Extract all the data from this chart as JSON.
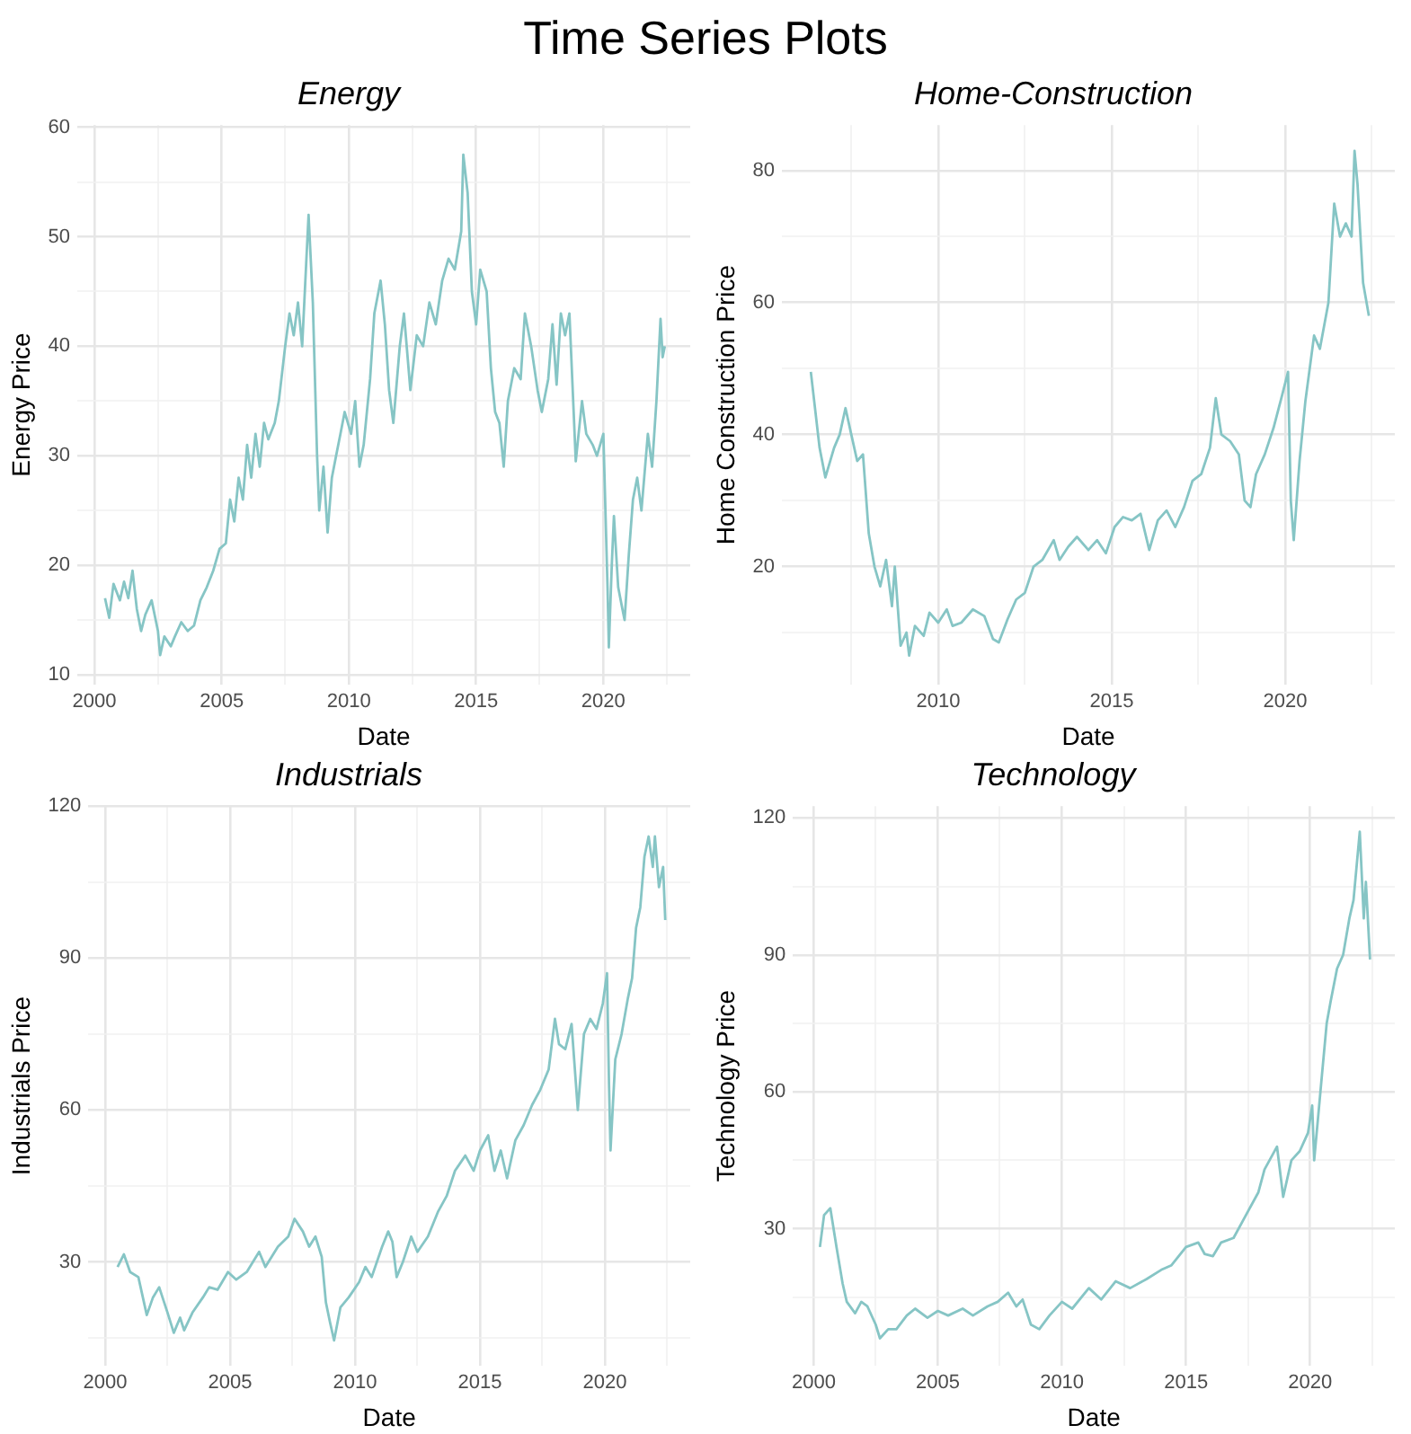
{
  "chart_data": [
    {
      "type": "line",
      "title": "Energy",
      "annotations": [
        "Time Series Plots"
      ],
      "xlabel": "Date",
      "ylabel": "Energy Price",
      "color": "#86c5c5",
      "marker": "none",
      "grid": true,
      "xlim": [
        "1999-05",
        "2023-06"
      ],
      "xticks": [
        "2000",
        {
          "value": "2002-07",
          "label": null
        },
        "2005",
        {
          "value": "2007-07",
          "label": null
        },
        "2010",
        {
          "value": "2012-07",
          "label": null
        },
        "2015",
        {
          "value": "2017-07",
          "label": null
        },
        "2020",
        {
          "value": "2022-07",
          "label": null
        }
      ],
      "ylim": [
        9.1,
        60.2
      ],
      "yticks": [
        10,
        {
          "value": 15,
          "label": null
        },
        20,
        {
          "value": 25,
          "label": null
        },
        30,
        {
          "value": 35,
          "label": null
        },
        40,
        {
          "value": 45,
          "label": null
        },
        50,
        {
          "value": 55,
          "label": null
        },
        60
      ],
      "x": [
        "2000-06",
        "2000-08",
        "2000-10",
        "2001-01",
        "2001-03",
        "2001-05",
        "2001-07",
        "2001-09",
        "2001-11",
        "2002-01",
        "2002-04",
        "2002-07",
        "2002-08",
        "2002-10",
        "2003-01",
        "2003-03",
        "2003-06",
        "2003-09",
        "2003-12",
        "2004-03",
        "2004-06",
        "2004-09",
        "2004-12",
        "2005-03",
        "2005-05",
        "2005-07",
        "2005-09",
        "2005-11",
        "2006-01",
        "2006-03",
        "2006-05",
        "2006-07",
        "2006-09",
        "2006-11",
        "2007-02",
        "2007-04",
        "2007-07",
        "2007-09",
        "2007-11",
        "2008-01",
        "2008-03",
        "2008-05",
        "2008-06",
        "2008-08",
        "2008-10",
        "2008-11",
        "2009-01",
        "2009-03",
        "2009-05",
        "2009-07",
        "2009-09",
        "2009-11",
        "2010-02",
        "2010-04",
        "2010-06",
        "2010-08",
        "2010-11",
        "2011-01",
        "2011-04",
        "2011-06",
        "2011-08",
        "2011-10",
        "2012-01",
        "2012-03",
        "2012-06",
        "2012-09",
        "2012-12",
        "2013-03",
        "2013-06",
        "2013-09",
        "2013-12",
        "2014-03",
        "2014-06",
        "2014-07",
        "2014-09",
        "2014-11",
        "2015-01",
        "2015-03",
        "2015-06",
        "2015-08",
        "2015-10",
        "2015-12",
        "2016-02",
        "2016-04",
        "2016-07",
        "2016-10",
        "2016-12",
        "2017-03",
        "2017-06",
        "2017-08",
        "2017-11",
        "2018-01",
        "2018-03",
        "2018-05",
        "2018-07",
        "2018-09",
        "2018-11",
        "2018-12",
        "2019-03",
        "2019-05",
        "2019-08",
        "2019-10",
        "2020-01",
        "2020-03",
        "2020-03-20",
        "2020-05",
        "2020-06",
        "2020-08",
        "2020-10",
        "2020-11",
        "2021-01",
        "2021-03",
        "2021-05",
        "2021-07",
        "2021-10",
        "2021-12",
        "2022-02",
        "2022-04",
        "2022-05",
        "2022-06"
      ],
      "values": [
        17,
        15.2,
        18.3,
        16.8,
        18.5,
        17,
        19.5,
        16,
        14,
        15.5,
        16.8,
        14,
        11.8,
        13.5,
        12.6,
        13.5,
        14.8,
        14,
        14.5,
        16.8,
        18,
        19.5,
        21.5,
        22,
        26,
        24,
        28,
        26,
        31,
        28,
        32,
        29,
        33,
        31.5,
        33,
        35,
        40,
        43,
        41,
        44,
        40,
        48,
        52,
        44,
        30,
        25,
        29,
        23,
        28,
        30,
        32,
        34,
        32,
        35,
        29,
        31,
        37,
        43,
        46,
        42,
        36,
        33,
        40,
        43,
        36,
        41,
        40,
        44,
        42,
        46,
        48,
        47,
        50.5,
        57.5,
        54,
        45,
        42,
        47,
        45,
        38,
        34,
        33,
        29,
        35,
        38,
        37,
        43,
        40,
        36,
        34,
        37,
        42,
        36.5,
        43,
        41,
        43,
        34,
        29.5,
        35,
        32,
        31,
        30,
        32,
        18,
        12.5,
        20,
        24.5,
        18,
        16,
        15,
        21,
        26,
        28,
        25,
        32,
        29,
        35,
        42.5,
        39,
        40
      ]
    },
    {
      "type": "line",
      "title": "Home-Construction",
      "xlabel": "Date",
      "ylabel": "Home Construction Price",
      "color": "#86c5c5",
      "marker": "none",
      "grid": true,
      "xlim": [
        "2005-07",
        "2023-03"
      ],
      "xticks": [
        {
          "value": "2007-07",
          "label": null
        },
        "2010",
        {
          "value": "2012-07",
          "label": null
        },
        "2015",
        {
          "value": "2017-07",
          "label": null
        },
        "2020",
        {
          "value": "2022-07",
          "label": null
        }
      ],
      "ylim": [
        2.1,
        86.9
      ],
      "yticks": [
        {
          "value": 10,
          "label": null
        },
        20,
        {
          "value": 30,
          "label": null
        },
        40,
        {
          "value": 50,
          "label": null
        },
        60,
        {
          "value": 70,
          "label": null
        },
        80
      ],
      "x": [
        "2006-05",
        "2006-08",
        "2006-10",
        "2007-01",
        "2007-03",
        "2007-05",
        "2007-07",
        "2007-09",
        "2007-11",
        "2008-01",
        "2008-03",
        "2008-05",
        "2008-07",
        "2008-09",
        "2008-10",
        "2008-12",
        "2009-02",
        "2009-03",
        "2009-05",
        "2009-08",
        "2009-10",
        "2010-01",
        "2010-04",
        "2010-06",
        "2010-09",
        "2011-01",
        "2011-05",
        "2011-08",
        "2011-10",
        "2012-01",
        "2012-04",
        "2012-07",
        "2012-10",
        "2013-01",
        "2013-05",
        "2013-07",
        "2013-10",
        "2014-01",
        "2014-05",
        "2014-08",
        "2014-11",
        "2015-02",
        "2015-05",
        "2015-08",
        "2015-11",
        "2016-02",
        "2016-05",
        "2016-08",
        "2016-11",
        "2017-02",
        "2017-05",
        "2017-08",
        "2017-11",
        "2018-01",
        "2018-03",
        "2018-06",
        "2018-09",
        "2018-11",
        "2019-01",
        "2019-03",
        "2019-06",
        "2019-09",
        "2019-12",
        "2020-02",
        "2020-03",
        "2020-04",
        "2020-06",
        "2020-08",
        "2020-11",
        "2021-01",
        "2021-04",
        "2021-06",
        "2021-08",
        "2021-10",
        "2021-12",
        "2022-01",
        "2022-02",
        "2022-04",
        "2022-06"
      ],
      "values": [
        49.5,
        38,
        33.5,
        38,
        40,
        44,
        40,
        36,
        37,
        25,
        20,
        17,
        21,
        14,
        20,
        8,
        10,
        6.5,
        11,
        9.5,
        13,
        11.5,
        13.5,
        11,
        11.5,
        13.5,
        12.5,
        9,
        8.5,
        12,
        15,
        16,
        20,
        21,
        24,
        21,
        23,
        24.5,
        22.5,
        24,
        22,
        26,
        27.5,
        27,
        28,
        22.5,
        27,
        28.5,
        26,
        29,
        33,
        34,
        38,
        45.5,
        40,
        39,
        37,
        30,
        29,
        34,
        37,
        41,
        46,
        49.5,
        30,
        24,
        36,
        45,
        55,
        53,
        60,
        75,
        70,
        72,
        70,
        83,
        78,
        63,
        58
      ]
    },
    {
      "type": "line",
      "title": "Industrials",
      "xlabel": "Date",
      "ylabel": "Industrials Price",
      "color": "#86c5c5",
      "marker": "none",
      "grid": true,
      "xlim": [
        "1999-05",
        "2023-06"
      ],
      "xticks": [
        "2000",
        {
          "value": "2002-07",
          "label": null
        },
        "2005",
        {
          "value": "2007-07",
          "label": null
        },
        "2010",
        {
          "value": "2012-07",
          "label": null
        },
        "2015",
        {
          "value": "2017-07",
          "label": null
        },
        "2020",
        {
          "value": "2022-07",
          "label": null
        }
      ],
      "ylim": [
        9.5,
        120
      ],
      "yticks": [
        {
          "value": 15,
          "label": null
        },
        30,
        {
          "value": 45,
          "label": null
        },
        60,
        {
          "value": 75,
          "label": null
        },
        90,
        {
          "value": 105,
          "label": null
        },
        120
      ],
      "x": [
        "2000-07",
        "2000-10",
        "2001-01",
        "2001-05",
        "2001-09",
        "2001-12",
        "2002-03",
        "2002-07",
        "2002-10",
        "2003-01",
        "2003-03",
        "2003-07",
        "2003-12",
        "2004-03",
        "2004-07",
        "2004-12",
        "2005-04",
        "2005-09",
        "2006-03",
        "2006-06",
        "2006-12",
        "2007-05",
        "2007-08",
        "2007-12",
        "2008-03",
        "2008-06",
        "2008-09",
        "2008-11",
        "2009-01",
        "2009-03",
        "2009-06",
        "2009-10",
        "2010-03",
        "2010-06",
        "2010-09",
        "2011-02",
        "2011-05",
        "2011-07",
        "2011-09",
        "2011-12",
        "2012-04",
        "2012-07",
        "2012-12",
        "2013-05",
        "2013-09",
        "2014-01",
        "2014-06",
        "2014-10",
        "2015-01",
        "2015-05",
        "2015-08",
        "2015-11",
        "2016-02",
        "2016-06",
        "2016-10",
        "2017-02",
        "2017-06",
        "2017-10",
        "2018-01",
        "2018-03",
        "2018-06",
        "2018-09",
        "2018-12",
        "2019-03",
        "2019-06",
        "2019-09",
        "2019-12",
        "2020-02",
        "2020-03",
        "2020-03-23",
        "2020-06",
        "2020-09",
        "2020-12",
        "2021-02",
        "2021-04",
        "2021-06",
        "2021-08",
        "2021-10",
        "2021-12",
        "2022-01",
        "2022-03",
        "2022-05",
        "2022-06"
      ],
      "values": [
        29,
        31.5,
        28,
        27,
        19.5,
        23,
        25,
        20,
        16,
        19,
        16.5,
        20,
        23,
        25,
        24.5,
        28,
        26.5,
        28,
        32,
        29,
        33,
        35,
        38.5,
        36,
        33,
        35,
        31,
        22,
        18,
        14.5,
        21,
        23,
        26,
        29,
        27,
        33,
        36,
        34,
        27,
        30,
        35,
        32,
        35,
        40,
        43,
        48,
        51,
        48,
        52,
        55,
        48,
        52,
        46.5,
        54,
        57,
        61,
        64,
        68,
        78,
        73,
        72,
        77,
        60,
        75,
        78,
        76,
        81,
        87,
        65,
        52,
        70,
        75,
        82,
        86,
        96,
        100,
        110,
        114,
        108,
        114,
        104,
        108,
        97.5
      ]
    },
    {
      "type": "line",
      "title": "Technology",
      "xlabel": "Date",
      "ylabel": "Technology Price",
      "color": "#86c5c5",
      "marker": "none",
      "grid": true,
      "xlim": [
        "1999-03",
        "2023-06"
      ],
      "xticks": [
        "2000",
        {
          "value": "2002-07",
          "label": null
        },
        "2005",
        {
          "value": "2007-07",
          "label": null
        },
        "2010",
        {
          "value": "2012-07",
          "label": null
        },
        "2015",
        {
          "value": "2017-07",
          "label": null
        },
        "2020",
        {
          "value": "2022-07",
          "label": null
        }
      ],
      "ylim": [
        0,
        122.6
      ],
      "yticks": [
        {
          "value": 15,
          "label": null
        },
        30,
        {
          "value": 45,
          "label": null
        },
        60,
        {
          "value": 75,
          "label": null
        },
        90,
        {
          "value": 105,
          "label": null
        },
        120
      ],
      "x": [
        "2000-04",
        "2000-06",
        "2000-09",
        "2000-12",
        "2001-03",
        "2001-05",
        "2001-09",
        "2001-12",
        "2002-03",
        "2002-07",
        "2002-09",
        "2003-01",
        "2003-05",
        "2003-10",
        "2004-02",
        "2004-08",
        "2005-01",
        "2005-06",
        "2006-01",
        "2006-06",
        "2007-01",
        "2007-06",
        "2007-11",
        "2008-03",
        "2008-06",
        "2008-10",
        "2009-02",
        "2009-07",
        "2010-01",
        "2010-06",
        "2011-02",
        "2011-08",
        "2012-03",
        "2012-10",
        "2013-06",
        "2014-01",
        "2014-06",
        "2015-01",
        "2015-07",
        "2015-10",
        "2016-02",
        "2016-06",
        "2016-12",
        "2017-06",
        "2017-12",
        "2018-03",
        "2018-09",
        "2018-12",
        "2019-04",
        "2019-08",
        "2019-12",
        "2020-02",
        "2020-03",
        "2020-06",
        "2020-09",
        "2020-11",
        "2021-02",
        "2021-05",
        "2021-08",
        "2021-10",
        "2022-01",
        "2022-03",
        "2022-04",
        "2022-06"
      ],
      "values": [
        26,
        33,
        34.5,
        26,
        18,
        14,
        11.5,
        14,
        13,
        9,
        6,
        8,
        8,
        11,
        12.5,
        10.5,
        12,
        11,
        12.5,
        11,
        13,
        14,
        16,
        13,
        14.5,
        9,
        8,
        11,
        14,
        12.5,
        17,
        14.5,
        18.5,
        17,
        19,
        21,
        22,
        26,
        27,
        24.5,
        24,
        27,
        28,
        33,
        38,
        43,
        48,
        37,
        45,
        47,
        51,
        57,
        45,
        60,
        75,
        80,
        87,
        90,
        98,
        102,
        117,
        98,
        106,
        89
      ]
    }
  ]
}
